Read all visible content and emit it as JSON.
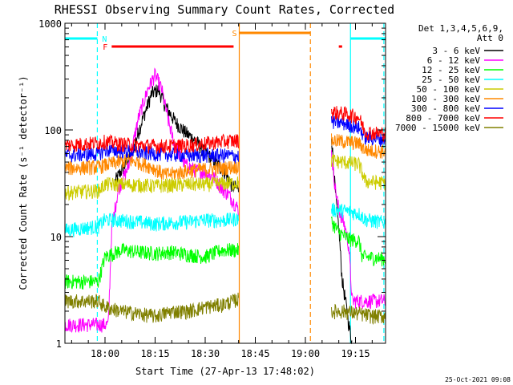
{
  "chart_data": {
    "type": "line",
    "title": "RHESSI Observing Summary Count Rates, Corrected",
    "xlabel": "Start Time (27-Apr-13 17:48:02)",
    "ylabel": "Corrected Count Rate (s⁻¹ detector⁻¹)",
    "y_scale": "log",
    "ylim": [
      1,
      1000
    ],
    "xlim_minutes": [
      -12.0,
      84.0
    ],
    "x_ticks": [
      {
        "label": "18:00",
        "min": 0
      },
      {
        "label": "18:15",
        "min": 15
      },
      {
        "label": "18:30",
        "min": 30
      },
      {
        "label": "18:45",
        "min": 45
      },
      {
        "label": "19:00",
        "min": 60
      },
      {
        "label": "19:15",
        "min": 75
      }
    ],
    "y_ticks": [
      {
        "label": "1",
        "value": 1
      },
      {
        "label": "10",
        "value": 10
      },
      {
        "label": "100",
        "value": 100
      },
      {
        "label": "1000",
        "value": 1000
      }
    ],
    "legend_header": [
      "Det 1,3,4,5,6,9,",
      "Att 0"
    ],
    "legend_position": "right",
    "grid": false,
    "timestamp": "25-Oct-2021 09:08",
    "gap_minutes": [
      40,
      67.5
    ],
    "series": [
      {
        "name": "3 - 6 keV",
        "color": "#000000",
        "points": [
          [
            3,
            33
          ],
          [
            5,
            42
          ],
          [
            8,
            60
          ],
          [
            11,
            120
          ],
          [
            14,
            220
          ],
          [
            16,
            240
          ],
          [
            18,
            170
          ],
          [
            21,
            120
          ],
          [
            24,
            95
          ],
          [
            27,
            80
          ],
          [
            30,
            62
          ],
          [
            33,
            50
          ],
          [
            36,
            40
          ],
          [
            38,
            30
          ],
          [
            40,
            28
          ]
        ],
        "after_gap": [
          [
            67.8,
            90
          ],
          [
            69,
            25
          ],
          [
            70,
            12
          ],
          [
            71,
            4
          ],
          [
            72,
            2.5
          ],
          [
            73,
            1.5
          ],
          [
            74,
            1
          ]
        ]
      },
      {
        "name": "6 - 12 keV",
        "color": "#ff00ff",
        "points": [
          [
            -12,
            1.5
          ],
          [
            -2,
            1.5
          ],
          [
            1,
            1.5
          ],
          [
            2,
            12
          ],
          [
            4,
            28
          ],
          [
            7,
            45
          ],
          [
            10,
            130
          ],
          [
            13,
            250
          ],
          [
            15,
            330
          ],
          [
            17,
            240
          ],
          [
            19,
            120
          ],
          [
            21,
            70
          ],
          [
            24,
            48
          ],
          [
            27,
            42
          ],
          [
            30,
            40
          ],
          [
            33,
            35
          ],
          [
            35,
            28
          ],
          [
            37,
            25
          ],
          [
            40,
            18
          ]
        ],
        "after_gap": [
          [
            67.8,
            60
          ],
          [
            69,
            28
          ],
          [
            70,
            18
          ],
          [
            72,
            12
          ],
          [
            73,
            8
          ],
          [
            74,
            2.5
          ],
          [
            84,
            2.5
          ]
        ]
      },
      {
        "name": "12 - 25 keV",
        "color": "#00ff00",
        "points": [
          [
            -12,
            3.8
          ],
          [
            -3,
            3.8
          ],
          [
            -2,
            3.8
          ],
          [
            0,
            6.5
          ],
          [
            5,
            7.5
          ],
          [
            10,
            7.2
          ],
          [
            15,
            7.0
          ],
          [
            20,
            7.2
          ],
          [
            25,
            6.8
          ],
          [
            30,
            6.5
          ],
          [
            35,
            7.5
          ],
          [
            40,
            7.5
          ]
        ],
        "after_gap": [
          [
            67.8,
            14
          ],
          [
            70,
            11
          ],
          [
            73,
            9.5
          ],
          [
            76,
            9.2
          ],
          [
            77,
            6.5
          ],
          [
            84,
            6.2
          ]
        ]
      },
      {
        "name": "25 - 50 keV",
        "color": "#00ffff",
        "points": [
          [
            -12,
            11.5
          ],
          [
            -2,
            12.5
          ],
          [
            0,
            14.5
          ],
          [
            5,
            14.2
          ],
          [
            10,
            13.8
          ],
          [
            15,
            13.2
          ],
          [
            20,
            13.6
          ],
          [
            25,
            13.8
          ],
          [
            30,
            14.4
          ],
          [
            35,
            14.2
          ],
          [
            40,
            14.8
          ]
        ],
        "after_gap": [
          [
            67.8,
            18
          ],
          [
            72,
            17.5
          ],
          [
            76,
            16.5
          ],
          [
            78,
            14.5
          ],
          [
            84,
            13.5
          ]
        ]
      },
      {
        "name": "50 - 100 keV",
        "color": "#cccc00",
        "points": [
          [
            -12,
            26
          ],
          [
            -2,
            27
          ],
          [
            0,
            31
          ],
          [
            5,
            31
          ],
          [
            10,
            30.5
          ],
          [
            15,
            30
          ],
          [
            20,
            30.5
          ],
          [
            25,
            31
          ],
          [
            30,
            31
          ],
          [
            35,
            31.5
          ],
          [
            40,
            32
          ]
        ],
        "after_gap": [
          [
            67.8,
            52
          ],
          [
            72,
            50
          ],
          [
            76,
            48
          ],
          [
            78,
            33
          ],
          [
            84,
            32
          ]
        ]
      },
      {
        "name": "100 - 300 keV",
        "color": "#ff8800",
        "points": [
          [
            -12,
            44
          ],
          [
            -2,
            45
          ],
          [
            0,
            47
          ],
          [
            4,
            50
          ],
          [
            7,
            52
          ],
          [
            10,
            50
          ],
          [
            14,
            45
          ],
          [
            18,
            38
          ],
          [
            22,
            40
          ],
          [
            26,
            42
          ],
          [
            30,
            43
          ],
          [
            35,
            44
          ],
          [
            40,
            46
          ]
        ],
        "after_gap": [
          [
            67.8,
            80
          ],
          [
            72,
            78
          ],
          [
            76,
            75
          ],
          [
            78,
            65
          ],
          [
            84,
            63
          ]
        ]
      },
      {
        "name": "300 - 800 keV",
        "color": "#0000ff",
        "points": [
          [
            -12,
            58
          ],
          [
            -2,
            60
          ],
          [
            0,
            65
          ],
          [
            4,
            64
          ],
          [
            8,
            63
          ],
          [
            12,
            61
          ],
          [
            16,
            60
          ],
          [
            20,
            59
          ],
          [
            24,
            58
          ],
          [
            28,
            58
          ],
          [
            32,
            58
          ],
          [
            36,
            58
          ],
          [
            40,
            57
          ]
        ],
        "after_gap": [
          [
            67.8,
            120
          ],
          [
            72,
            115
          ],
          [
            76,
            105
          ],
          [
            78,
            85
          ],
          [
            84,
            82
          ]
        ]
      },
      {
        "name": "800 - 7000 keV",
        "color": "#ff0000",
        "points": [
          [
            -12,
            72
          ],
          [
            -2,
            76
          ],
          [
            0,
            78
          ],
          [
            5,
            74
          ],
          [
            10,
            72
          ],
          [
            15,
            71
          ],
          [
            20,
            71
          ],
          [
            25,
            72
          ],
          [
            30,
            75
          ],
          [
            35,
            78
          ],
          [
            40,
            80
          ]
        ],
        "after_gap": [
          [
            67.8,
            148
          ],
          [
            72,
            142
          ],
          [
            76,
            132
          ],
          [
            78,
            95
          ],
          [
            84,
            93
          ]
        ]
      },
      {
        "name": "7000 - 15000 keV",
        "color": "#808000",
        "points": [
          [
            -12,
            2.5
          ],
          [
            -2,
            2.5
          ],
          [
            0,
            2.2
          ],
          [
            5,
            2.0
          ],
          [
            10,
            1.9
          ],
          [
            15,
            1.8
          ],
          [
            20,
            2.0
          ],
          [
            25,
            2.0
          ],
          [
            30,
            2.2
          ],
          [
            35,
            2.3
          ],
          [
            40,
            2.6
          ]
        ],
        "after_gap": [
          [
            67.8,
            2.0
          ],
          [
            72,
            2.0
          ],
          [
            76,
            1.9
          ],
          [
            80,
            1.8
          ],
          [
            84,
            1.8
          ]
        ]
      }
    ],
    "flag_bars": [
      {
        "label": "N",
        "color": "#00ffff",
        "from": -12,
        "to": -2.3
      },
      {
        "label": "N",
        "color": "#00ffff",
        "from": 73.5,
        "to": 84
      },
      {
        "label": "F",
        "color": "#ff0000",
        "from": 2,
        "to": 38.5
      },
      {
        "label": "F",
        "color": "#ff0000",
        "from": 70,
        "to": 71
      },
      {
        "label": "S",
        "color": "#ff8800",
        "from": 40.2,
        "to": 61.5
      }
    ],
    "vertical_markers": [
      {
        "color": "#00ffff",
        "style": "dashed",
        "at": -2.3
      },
      {
        "color": "#00ffff",
        "style": "solid",
        "at": 73.5
      },
      {
        "color": "#00ffff",
        "style": "dashed",
        "at": 83.5
      },
      {
        "color": "#ff8800",
        "style": "solid",
        "at": 40.2
      },
      {
        "color": "#ff8800",
        "style": "dashed",
        "at": 61.5
      }
    ]
  }
}
